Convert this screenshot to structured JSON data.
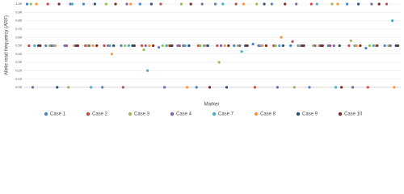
{
  "chart_data": {
    "type": "scatter",
    "y_label": "Allele read frequency (ARF)",
    "x_label": "Marker",
    "categories": [
      null,
      null,
      null,
      null,
      null,
      null,
      null,
      null,
      null,
      null,
      null,
      null,
      null,
      null,
      null,
      null,
      null,
      null,
      null,
      null
    ],
    "ylim": [
      0,
      1
    ],
    "yticks": [
      {
        "value": 0,
        "label": "0.00"
      },
      {
        "value": 0.1,
        "label": "0.10"
      },
      {
        "value": 0.2,
        "label": "0.20"
      },
      {
        "value": 0.3,
        "label": "0.30"
      },
      {
        "value": 0.4,
        "label": "0.40"
      },
      {
        "value": 0.5,
        "label": "0.50"
      },
      {
        "value": 0.6,
        "label": "0.60"
      },
      {
        "value": 0.7,
        "label": "0.70"
      },
      {
        "value": 0.8,
        "label": "0.80"
      },
      {
        "value": 0.9,
        "label": "0.90"
      },
      {
        "value": 1,
        "label": "1.00"
      }
    ],
    "grid": true,
    "legend": "bottom",
    "series": [
      {
        "name": "Case 1",
        "color": "#4f81bd",
        "values": [
          1,
          0.5,
          0.5,
          1,
          0,
          0.5,
          1,
          0.48,
          0.5,
          0,
          1,
          0.5,
          0.52,
          1,
          0.5,
          0,
          0.5,
          1,
          0.47,
          0.5
        ]
      },
      {
        "name": "Case 2",
        "color": "#c0504d",
        "values": [
          0.5,
          1,
          0.5,
          0.5,
          0.5,
          0,
          0.5,
          1,
          0.5,
          0.5,
          0.5,
          1,
          0,
          0.5,
          0.55,
          1,
          0.5,
          0.5,
          0,
          1
        ]
      },
      {
        "name": "Case 3",
        "color": "#9bbb59",
        "values": [
          1,
          0.5,
          0,
          0.5,
          1,
          0.5,
          0.45,
          0.5,
          1,
          0.5,
          0.3,
          0.5,
          1,
          0.5,
          0,
          0.5,
          1,
          0.56,
          0.5,
          0.5
        ]
      },
      {
        "name": "Case 4",
        "color": "#8064a2",
        "values": [
          0,
          0.5,
          1,
          0.5,
          0.5,
          1,
          0.5,
          0,
          0.5,
          1,
          0.5,
          0.5,
          0.5,
          0,
          1,
          0.5,
          0.5,
          0,
          1,
          0.5
        ]
      },
      {
        "name": "Case 7",
        "color": "#4bacc6",
        "values": [
          0.5,
          0.5,
          1,
          0,
          0.5,
          0.5,
          0.2,
          0.5,
          0.5,
          0.5,
          1,
          0.43,
          0.5,
          0.5,
          0.5,
          1,
          0,
          0.5,
          0.5,
          0.8
        ]
      },
      {
        "name": "Case 8",
        "color": "#f79646",
        "values": [
          1,
          0.5,
          0.5,
          0.5,
          0.4,
          1,
          0.5,
          0.5,
          0,
          0.5,
          0.5,
          1,
          0.5,
          0.6,
          0.5,
          0.5,
          1,
          0.5,
          0.5,
          0
        ]
      },
      {
        "name": "Case 9",
        "color": "#2c4d75",
        "values": [
          0.5,
          0,
          0.5,
          1,
          0.5,
          0.5,
          1,
          0.5,
          0.5,
          0.5,
          0,
          0.5,
          1,
          0.5,
          0.5,
          0.5,
          0.5,
          1,
          0.5,
          0.5
        ]
      },
      {
        "name": "Case 10",
        "color": "#772c2a",
        "values": [
          0.5,
          1,
          0.5,
          0.5,
          1,
          0.5,
          0.5,
          0.5,
          1,
          0,
          0.5,
          0.5,
          0.5,
          1,
          0.5,
          0.5,
          0,
          0.5,
          1,
          0.5
        ]
      }
    ]
  }
}
